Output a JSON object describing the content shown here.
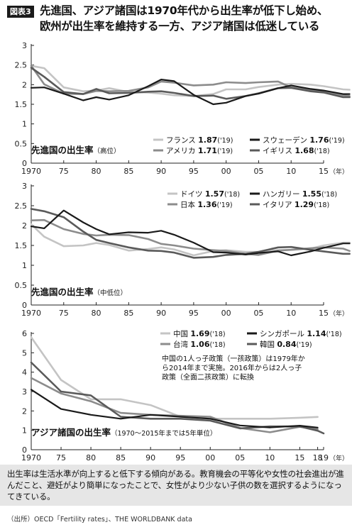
{
  "header": {
    "badge": "図表3",
    "title_line1": "先進国、アジア諸国は1970年代から出生率が低下し始め、",
    "title_line2": "欧州が出生率を維持する一方、アジア諸国は低迷している"
  },
  "footer": {
    "note": "出生率は生活水準が向上すると低下する傾向がある。教育機会の平等化や女性の社会進出が進んだこと、避妊がより簡単になったことで、女性がより少ない子供の数を選択するようになってきている。",
    "source": "（出所）OECD「Fertility rates」、THE WORLDBANK data"
  },
  "colors": {
    "black": "#1a1a1a",
    "dark_gray": "#5a5a5a",
    "mid_gray": "#8c8c8c",
    "light_gray": "#c4c4c4"
  },
  "chart_data": [
    {
      "type": "line",
      "title": "先進国の出生率",
      "subtitle": "（高位）",
      "ylim": [
        0,
        3
      ],
      "yticks": [
        "0",
        "0.5",
        "1",
        "1.5",
        "2",
        "2.5",
        "3"
      ],
      "xticks": [
        "1970",
        "75",
        "80",
        "85",
        "90",
        "95",
        "00",
        "05",
        "10",
        "15"
      ],
      "x_unit": "（年）",
      "x": [
        1970,
        1972,
        1975,
        1978,
        1980,
        1982,
        1985,
        1988,
        1990,
        1992,
        1995,
        1998,
        2000,
        2003,
        2005,
        2008,
        2010,
        2013,
        2015,
        2018,
        2019
      ],
      "series": [
        {
          "name": "フランス",
          "value": "1.87",
          "year": "('19)",
          "color": "light_gray",
          "values": [
            2.48,
            2.42,
            1.93,
            1.83,
            1.85,
            1.91,
            1.81,
            1.8,
            1.77,
            1.73,
            1.71,
            1.76,
            1.88,
            1.88,
            1.94,
            2.0,
            2.02,
            2.0,
            1.96,
            1.88,
            1.87
          ]
        },
        {
          "name": "スウェーデン",
          "value": "1.76",
          "year": "('19)",
          "color": "black",
          "values": [
            1.92,
            1.93,
            1.77,
            1.6,
            1.68,
            1.62,
            1.73,
            1.96,
            2.13,
            2.09,
            1.74,
            1.5,
            1.54,
            1.71,
            1.77,
            1.91,
            1.98,
            1.89,
            1.85,
            1.76,
            1.76
          ]
        },
        {
          "name": "アメリカ",
          "value": "1.71",
          "year": "('19)",
          "color": "mid_gray",
          "values": [
            2.48,
            2.01,
            1.77,
            1.76,
            1.84,
            1.83,
            1.84,
            1.93,
            2.08,
            2.05,
            1.98,
            2.0,
            2.06,
            2.04,
            2.06,
            2.08,
            1.93,
            1.86,
            1.84,
            1.73,
            1.71
          ]
        },
        {
          "name": "イギリス",
          "value": "1.68",
          "year": "('18)",
          "color": "dark_gray",
          "values": [
            2.43,
            2.2,
            1.81,
            1.76,
            1.89,
            1.78,
            1.79,
            1.82,
            1.83,
            1.79,
            1.71,
            1.72,
            1.64,
            1.71,
            1.78,
            1.91,
            1.92,
            1.83,
            1.8,
            1.68,
            1.68
          ]
        }
      ]
    },
    {
      "type": "line",
      "title": "先進国の出生率",
      "subtitle": "（中低位）",
      "ylim": [
        0,
        3
      ],
      "yticks": [
        "0",
        "0.5",
        "1",
        "1.5",
        "2",
        "2.5",
        "3"
      ],
      "xticks": [
        "1970",
        "75",
        "80",
        "85",
        "90",
        "95",
        "00",
        "05",
        "10",
        "15"
      ],
      "x_unit": "（年）",
      "x": [
        1970,
        1972,
        1975,
        1978,
        1980,
        1982,
        1985,
        1988,
        1990,
        1992,
        1995,
        1998,
        2000,
        2003,
        2005,
        2008,
        2010,
        2013,
        2015,
        2018,
        2019
      ],
      "series": [
        {
          "name": "ドイツ",
          "value": "1.57",
          "year": "('18)",
          "color": "light_gray",
          "values": [
            2.03,
            1.72,
            1.48,
            1.5,
            1.56,
            1.51,
            1.37,
            1.41,
            1.45,
            1.4,
            1.25,
            1.36,
            1.38,
            1.34,
            1.34,
            1.38,
            1.39,
            1.42,
            1.5,
            1.57,
            1.57
          ]
        },
        {
          "name": "ハンガリー",
          "value": "1.55",
          "year": "('18)",
          "color": "black",
          "values": [
            1.98,
            1.93,
            2.38,
            2.08,
            1.91,
            1.78,
            1.83,
            1.82,
            1.87,
            1.77,
            1.57,
            1.33,
            1.32,
            1.27,
            1.31,
            1.35,
            1.25,
            1.35,
            1.44,
            1.55,
            1.55
          ]
        },
        {
          "name": "日本",
          "value": "1.36",
          "year": "('19)",
          "color": "mid_gray",
          "values": [
            2.13,
            2.14,
            1.91,
            1.79,
            1.75,
            1.77,
            1.76,
            1.66,
            1.54,
            1.5,
            1.42,
            1.38,
            1.36,
            1.29,
            1.26,
            1.37,
            1.39,
            1.43,
            1.45,
            1.42,
            1.36
          ]
        },
        {
          "name": "イタリア",
          "value": "1.29",
          "year": "('18)",
          "color": "dark_gray",
          "values": [
            2.42,
            2.36,
            2.21,
            1.85,
            1.64,
            1.56,
            1.45,
            1.37,
            1.36,
            1.32,
            1.19,
            1.21,
            1.26,
            1.29,
            1.34,
            1.45,
            1.46,
            1.39,
            1.35,
            1.29,
            1.29
          ]
        }
      ]
    },
    {
      "type": "line",
      "title": "アジア諸国の出生率",
      "subtitle": "（1970～2015年までは5年単位）",
      "ylim": [
        0,
        6
      ],
      "yticks": [
        "0",
        "1",
        "2",
        "3",
        "4",
        "5",
        "6"
      ],
      "xticks": [
        "1970",
        "75",
        "80",
        "85",
        "90",
        "95",
        "00",
        "05",
        "10",
        "15",
        "18",
        "19"
      ],
      "x_unit": "（年）",
      "x": [
        1970,
        1975,
        1980,
        1985,
        1990,
        1995,
        2000,
        2005,
        2010,
        2015,
        2018,
        2019
      ],
      "series": [
        {
          "name": "中国",
          "value": "1.69",
          "year": "('18)",
          "color": "light_gray",
          "values": [
            5.8,
            3.6,
            2.6,
            2.6,
            2.3,
            1.7,
            1.6,
            1.6,
            1.6,
            1.65,
            1.69,
            null
          ]
        },
        {
          "name": "シンガポール",
          "value": "1.14",
          "year": "('18)",
          "color": "black",
          "values": [
            3.1,
            2.1,
            1.8,
            1.6,
            1.8,
            1.7,
            1.6,
            1.25,
            1.15,
            1.24,
            1.14,
            null
          ]
        },
        {
          "name": "台湾",
          "value": "1.06",
          "year": "('18)",
          "color": "mid_gray",
          "values": [
            3.7,
            2.9,
            2.5,
            1.9,
            1.8,
            1.75,
            1.7,
            1.12,
            0.9,
            1.18,
            1.06,
            null
          ]
        },
        {
          "name": "韓国",
          "value": "0.84",
          "year": "('19)",
          "color": "dark_gray",
          "values": [
            4.5,
            3.0,
            2.8,
            1.7,
            1.6,
            1.6,
            1.5,
            1.1,
            1.2,
            1.2,
            0.98,
            0.84
          ]
        }
      ],
      "annotation_line1": "中国の1人っ子政策（一孩政策）は1979年か",
      "annotation_line2": "ら2014年まで実施。2016年からは2人っ子",
      "annotation_line3": "政策（全面二孩政策）に転換"
    }
  ]
}
